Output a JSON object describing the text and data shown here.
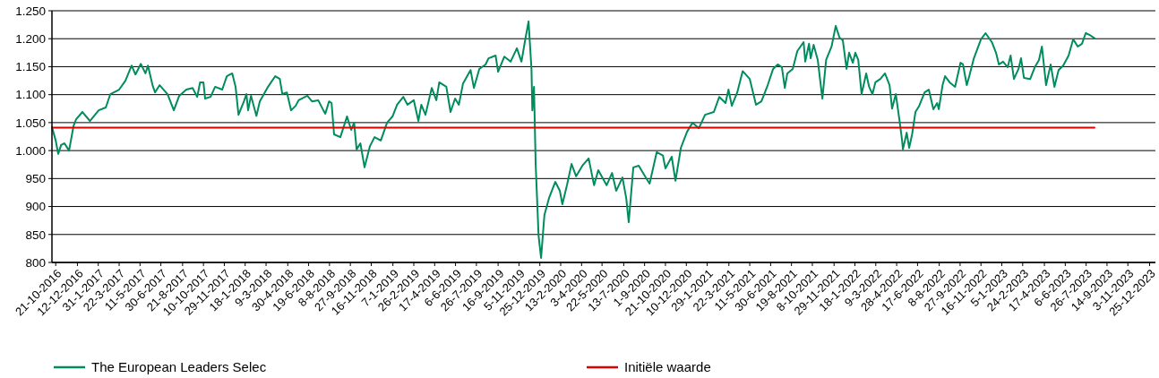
{
  "chart_data": {
    "type": "line",
    "xlim": [
      "2016-10-12",
      "2024-01-08"
    ],
    "ylim": [
      800,
      1250
    ],
    "yticks": [
      {
        "value": 800,
        "label": "800"
      },
      {
        "value": 850,
        "label": "850"
      },
      {
        "value": 900,
        "label": "900"
      },
      {
        "value": 950,
        "label": "950"
      },
      {
        "value": 1000,
        "label": "1.000"
      },
      {
        "value": 1050,
        "label": "1.050"
      },
      {
        "value": 1100,
        "label": "1.100"
      },
      {
        "value": 1150,
        "label": "1.150"
      },
      {
        "value": 1200,
        "label": "1.200"
      },
      {
        "value": 1250,
        "label": "1.250"
      }
    ],
    "xticks": [
      {
        "value": "2016-10-21",
        "label": "21-10-2016"
      },
      {
        "value": "2016-12-12",
        "label": "12-12-2016"
      },
      {
        "value": "2017-01-31",
        "label": "31-1-2017"
      },
      {
        "value": "2017-03-22",
        "label": "22-3-2017"
      },
      {
        "value": "2017-05-11",
        "label": "11-5-2017"
      },
      {
        "value": "2017-06-30",
        "label": "30-6-2017"
      },
      {
        "value": "2017-08-21",
        "label": "21-8-2017"
      },
      {
        "value": "2017-10-10",
        "label": "10-10-2017"
      },
      {
        "value": "2017-11-29",
        "label": "29-11-2017"
      },
      {
        "value": "2018-01-18",
        "label": "18-1-2018"
      },
      {
        "value": "2018-03-09",
        "label": "9-3-2018"
      },
      {
        "value": "2018-04-30",
        "label": "30-4-2018"
      },
      {
        "value": "2018-06-19",
        "label": "19-6-2018"
      },
      {
        "value": "2018-08-08",
        "label": "8-8-2018"
      },
      {
        "value": "2018-09-27",
        "label": "27-9-2018"
      },
      {
        "value": "2018-11-16",
        "label": "16-11-2018"
      },
      {
        "value": "2019-01-07",
        "label": "7-1-2019"
      },
      {
        "value": "2019-02-26",
        "label": "26-2-2019"
      },
      {
        "value": "2019-04-17",
        "label": "17-4-2019"
      },
      {
        "value": "2019-06-06",
        "label": "6-6-2019"
      },
      {
        "value": "2019-07-26",
        "label": "26-7-2019"
      },
      {
        "value": "2019-09-16",
        "label": "16-9-2019"
      },
      {
        "value": "2019-11-05",
        "label": "5-11-2019"
      },
      {
        "value": "2019-12-25",
        "label": "25-12-2019"
      },
      {
        "value": "2020-02-13",
        "label": "13-2-2020"
      },
      {
        "value": "2020-04-03",
        "label": "3-4-2020"
      },
      {
        "value": "2020-05-22",
        "label": "22-5-2020"
      },
      {
        "value": "2020-07-13",
        "label": "13-7-2020"
      },
      {
        "value": "2020-09-01",
        "label": "1-9-2020"
      },
      {
        "value": "2020-10-21",
        "label": "21-10-2020"
      },
      {
        "value": "2020-12-10",
        "label": "10-12-2020"
      },
      {
        "value": "2021-01-29",
        "label": "29-1-2021"
      },
      {
        "value": "2021-03-22",
        "label": "22-3-2021"
      },
      {
        "value": "2021-05-11",
        "label": "11-5-2021"
      },
      {
        "value": "2021-06-30",
        "label": "30-6-2021"
      },
      {
        "value": "2021-08-19",
        "label": "19-8-2021"
      },
      {
        "value": "2021-10-08",
        "label": "8-10-2021"
      },
      {
        "value": "2021-11-29",
        "label": "29-11-2021"
      },
      {
        "value": "2022-01-18",
        "label": "18-1-2022"
      },
      {
        "value": "2022-03-09",
        "label": "9-3-2022"
      },
      {
        "value": "2022-04-28",
        "label": "28-4-2022"
      },
      {
        "value": "2022-06-17",
        "label": "17-6-2022"
      },
      {
        "value": "2022-08-08",
        "label": "8-8-2022"
      },
      {
        "value": "2022-09-27",
        "label": "27-9-2022"
      },
      {
        "value": "2022-11-16",
        "label": "16-11-2022"
      },
      {
        "value": "2023-01-05",
        "label": "5-1-2023"
      },
      {
        "value": "2023-02-24",
        "label": "24-2-2023"
      },
      {
        "value": "2023-04-17",
        "label": "17-4-2023"
      },
      {
        "value": "2023-06-06",
        "label": "6-6-2023"
      },
      {
        "value": "2023-07-26",
        "label": "26-7-2023"
      },
      {
        "value": "2023-09-14",
        "label": "14-9-2023"
      },
      {
        "value": "2023-11-03",
        "label": "3-11-2023"
      },
      {
        "value": "2023-12-25",
        "label": "25-12-2023"
      }
    ],
    "grid": "y",
    "legend": "bottom",
    "marker": "none",
    "series": [
      {
        "name": "The European Leaders Selec",
        "color": "#008c5f",
        "x": [
          "2016-10-12",
          "2016-10-21",
          "2016-10-27",
          "2016-11-03",
          "2016-11-11",
          "2016-11-22",
          "2016-12-03",
          "2016-12-09",
          "2016-12-24",
          "2017-01-11",
          "2017-02-01",
          "2017-02-18",
          "2017-03-01",
          "2017-03-22",
          "2017-04-06",
          "2017-04-21",
          "2017-04-30",
          "2017-05-13",
          "2017-05-24",
          "2017-05-30",
          "2017-06-10",
          "2017-06-16",
          "2017-06-27",
          "2017-07-16",
          "2017-07-31",
          "2017-08-13",
          "2017-08-30",
          "2017-09-14",
          "2017-09-25",
          "2017-10-02",
          "2017-10-10",
          "2017-10-14",
          "2017-10-27",
          "2017-11-07",
          "2017-11-24",
          "2017-12-05",
          "2017-12-18",
          "2017-12-26",
          "2018-01-02",
          "2018-01-15",
          "2018-01-21",
          "2018-01-25",
          "2018-02-01",
          "2018-02-14",
          "2018-02-22",
          "2018-03-12",
          "2018-03-31",
          "2018-04-11",
          "2018-04-17",
          "2018-04-28",
          "2018-05-08",
          "2018-05-19",
          "2018-05-26",
          "2018-06-16",
          "2018-06-27",
          "2018-07-12",
          "2018-07-23",
          "2018-07-29",
          "2018-08-07",
          "2018-08-13",
          "2018-08-19",
          "2018-09-03",
          "2018-09-19",
          "2018-09-29",
          "2018-10-06",
          "2018-10-12",
          "2018-10-21",
          "2018-10-31",
          "2018-11-13",
          "2018-11-24",
          "2018-12-09",
          "2018-12-24",
          "2019-01-06",
          "2019-01-17",
          "2019-02-01",
          "2019-02-11",
          "2019-02-26",
          "2019-03-09",
          "2019-03-16",
          "2019-03-26",
          "2019-04-10",
          "2019-04-21",
          "2019-04-28",
          "2019-05-15",
          "2019-05-25",
          "2019-06-05",
          "2019-06-14",
          "2019-06-24",
          "2019-07-12",
          "2019-07-20",
          "2019-08-02",
          "2019-08-17",
          "2019-08-24",
          "2019-09-10",
          "2019-09-16",
          "2019-10-01",
          "2019-10-16",
          "2019-10-31",
          "2019-11-11",
          "2019-11-19",
          "2019-11-28",
          "2019-12-05",
          "2019-12-07",
          "2019-12-11",
          "2019-12-15",
          "2019-12-22",
          "2019-12-28",
          "2020-01-05",
          "2020-01-16",
          "2020-01-31",
          "2020-02-11",
          "2020-02-17",
          "2020-02-28",
          "2020-03-10",
          "2020-03-21",
          "2020-04-05",
          "2020-04-20",
          "2020-05-03",
          "2020-05-13",
          "2020-06-02",
          "2020-06-15",
          "2020-06-25",
          "2020-07-10",
          "2020-07-19",
          "2020-07-25",
          "2020-08-05",
          "2020-08-18",
          "2020-09-02",
          "2020-09-13",
          "2020-09-30",
          "2020-10-15",
          "2020-10-21",
          "2020-11-05",
          "2020-11-14",
          "2020-11-27",
          "2020-12-12",
          "2020-12-25",
          "2021-01-09",
          "2021-01-24",
          "2021-02-14",
          "2021-02-27",
          "2021-03-14",
          "2021-03-21",
          "2021-03-29",
          "2021-04-11",
          "2021-04-24",
          "2021-05-11",
          "2021-05-26",
          "2021-06-08",
          "2021-06-23",
          "2021-07-06",
          "2021-07-17",
          "2021-07-27",
          "2021-08-03",
          "2021-08-09",
          "2021-08-22",
          "2021-09-02",
          "2021-09-17",
          "2021-09-21",
          "2021-09-30",
          "2021-10-04",
          "2021-10-11",
          "2021-10-21",
          "2021-10-26",
          "2021-11-01",
          "2021-11-10",
          "2021-11-23",
          "2021-12-03",
          "2021-12-12",
          "2021-12-20",
          "2021-12-29",
          "2022-01-04",
          "2022-01-13",
          "2022-01-19",
          "2022-01-26",
          "2022-02-03",
          "2022-02-14",
          "2022-02-21",
          "2022-03-01",
          "2022-03-08",
          "2022-03-20",
          "2022-03-31",
          "2022-04-11",
          "2022-04-17",
          "2022-04-26",
          "2022-05-05",
          "2022-05-11",
          "2022-05-13",
          "2022-05-22",
          "2022-05-28",
          "2022-06-04",
          "2022-06-12",
          "2022-06-21",
          "2022-07-04",
          "2022-07-14",
          "2022-07-25",
          "2022-08-03",
          "2022-08-07",
          "2022-08-16",
          "2022-08-22",
          "2022-09-02",
          "2022-09-15",
          "2022-09-28",
          "2022-10-04",
          "2022-10-13",
          "2022-10-19",
          "2022-10-30",
          "2022-11-16",
          "2022-11-27",
          "2022-12-12",
          "2022-12-22",
          "2022-12-29",
          "2023-01-08",
          "2023-01-19",
          "2023-01-26",
          "2023-02-03",
          "2023-02-14",
          "2023-02-20",
          "2023-02-27",
          "2023-03-14",
          "2023-03-25",
          "2023-04-04",
          "2023-04-11",
          "2023-04-21",
          "2023-05-02",
          "2023-05-11",
          "2023-05-21",
          "2023-06-01",
          "2023-06-14",
          "2023-06-25",
          "2023-07-06",
          "2023-07-16",
          "2023-07-25",
          "2023-08-05",
          "2023-08-15"
        ],
        "values": [
          1042,
          1018,
          994,
          1010,
          1013,
          1000,
          1045,
          1056,
          1069,
          1053,
          1072,
          1077,
          1101,
          1109,
          1125,
          1152,
          1136,
          1155,
          1138,
          1152,
          1117,
          1104,
          1117,
          1101,
          1072,
          1098,
          1109,
          1112,
          1096,
          1122,
          1122,
          1093,
          1096,
          1114,
          1109,
          1133,
          1138,
          1114,
          1064,
          1088,
          1101,
          1072,
          1098,
          1062,
          1088,
          1112,
          1133,
          1128,
          1101,
          1104,
          1072,
          1080,
          1090,
          1098,
          1088,
          1090,
          1074,
          1066,
          1088,
          1085,
          1029,
          1024,
          1061,
          1037,
          1050,
          1002,
          1013,
          970,
          1008,
          1024,
          1018,
          1050,
          1061,
          1082,
          1096,
          1082,
          1090,
          1053,
          1082,
          1064,
          1112,
          1090,
          1122,
          1114,
          1069,
          1093,
          1082,
          1120,
          1144,
          1112,
          1146,
          1154,
          1165,
          1170,
          1141,
          1168,
          1159,
          1183,
          1159,
          1194,
          1231,
          1146,
          1072,
          1114,
          976,
          848,
          808,
          885,
          915,
          944,
          928,
          904,
          938,
          976,
          954,
          973,
          986,
          938,
          965,
          938,
          960,
          928,
          952,
          915,
          872,
          970,
          973,
          954,
          941,
          997,
          991,
          968,
          989,
          946,
          1005,
          1034,
          1050,
          1040,
          1064,
          1069,
          1096,
          1085,
          1109,
          1080,
          1104,
          1142,
          1128,
          1082,
          1088,
          1117,
          1146,
          1154,
          1149,
          1112,
          1138,
          1146,
          1178,
          1194,
          1159,
          1191,
          1165,
          1189,
          1162,
          1130,
          1093,
          1162,
          1186,
          1223,
          1202,
          1197,
          1146,
          1175,
          1157,
          1175,
          1162,
          1101,
          1138,
          1114,
          1101,
          1122,
          1128,
          1138,
          1117,
          1075,
          1101,
          1053,
          1018,
          1002,
          1032,
          1005,
          1029,
          1069,
          1080,
          1104,
          1109,
          1074,
          1085,
          1074,
          1117,
          1133,
          1122,
          1114,
          1157,
          1154,
          1117,
          1133,
          1165,
          1199,
          1210,
          1194,
          1175,
          1154,
          1159,
          1149,
          1170,
          1128,
          1146,
          1165,
          1130,
          1128,
          1149,
          1162,
          1186,
          1117,
          1154,
          1114,
          1144,
          1152,
          1170,
          1199,
          1186,
          1191,
          1210,
          1206,
          1201
        ]
      },
      {
        "name": "Initiële waarde",
        "color": "#e00000",
        "x": [
          "2016-10-12",
          "2023-08-15"
        ],
        "values": [
          1041,
          1041
        ]
      }
    ]
  }
}
